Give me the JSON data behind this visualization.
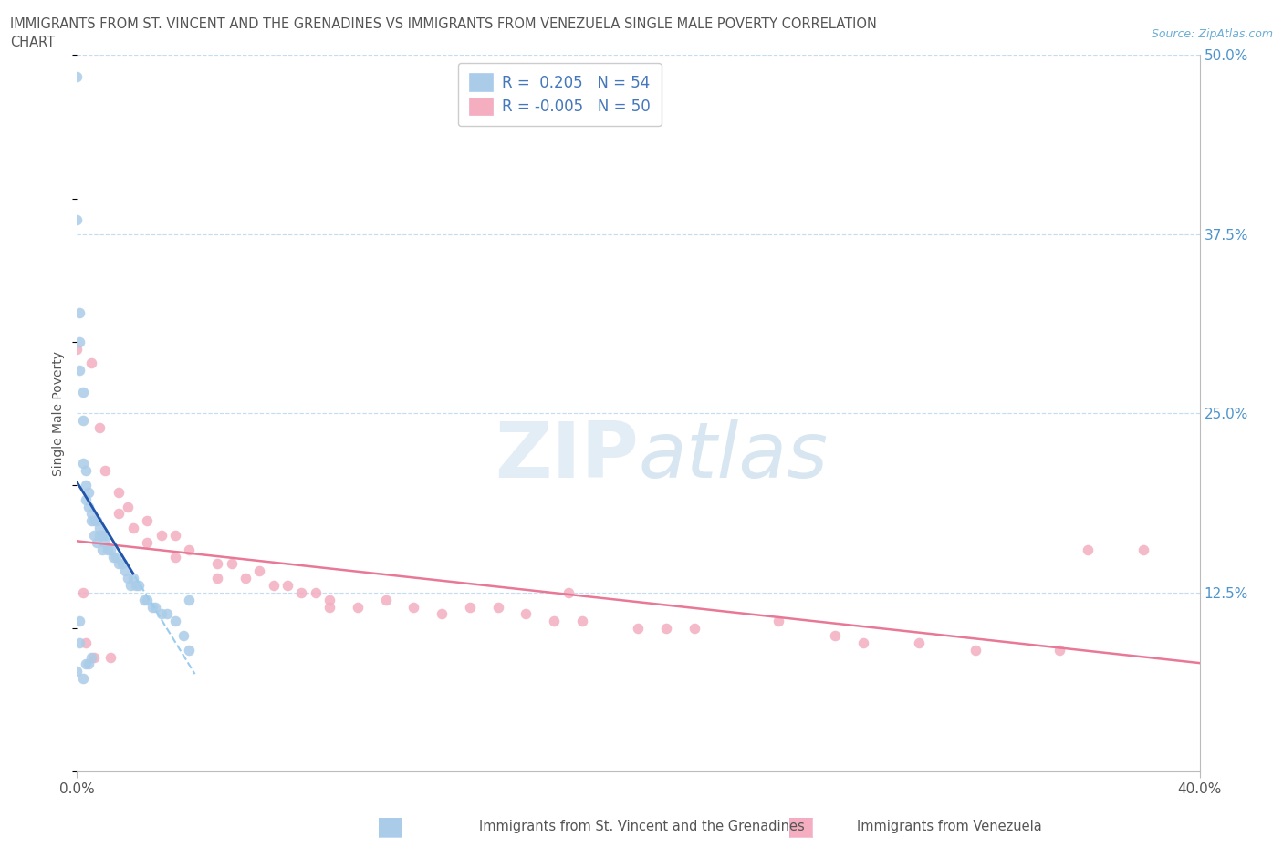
{
  "title_line1": "IMMIGRANTS FROM ST. VINCENT AND THE GRENADINES VS IMMIGRANTS FROM VENEZUELA SINGLE MALE POVERTY CORRELATION",
  "title_line2": "CHART",
  "source": "Source: ZipAtlas.com",
  "series1_label": "Immigrants from St. Vincent and the Grenadines",
  "series2_label": "Immigrants from Venezuela",
  "r1": 0.205,
  "n1": 54,
  "r2": -0.005,
  "n2": 50,
  "color1": "#aacce8",
  "color2": "#f4aec0",
  "line1_solid_color": "#2255aa",
  "line1_dash_color": "#99ccee",
  "line2_color": "#e87896",
  "xlim": [
    0.0,
    0.4
  ],
  "ylim": [
    0.0,
    0.5
  ],
  "ytick_values": [
    0.0,
    0.125,
    0.25,
    0.375,
    0.5
  ],
  "ytick_labels": [
    "0.0%",
    "12.5%",
    "25.0%",
    "37.5%",
    "50.0%"
  ],
  "ylabel_label": "Single Male Poverty",
  "blue_scatter_x": [
    0.0,
    0.0,
    0.0,
    0.001,
    0.001,
    0.001,
    0.001,
    0.001,
    0.002,
    0.002,
    0.002,
    0.002,
    0.003,
    0.003,
    0.003,
    0.003,
    0.004,
    0.004,
    0.004,
    0.005,
    0.005,
    0.005,
    0.006,
    0.006,
    0.007,
    0.007,
    0.008,
    0.008,
    0.009,
    0.009,
    0.01,
    0.01,
    0.011,
    0.012,
    0.013,
    0.014,
    0.015,
    0.016,
    0.017,
    0.018,
    0.019,
    0.02,
    0.021,
    0.022,
    0.024,
    0.025,
    0.027,
    0.028,
    0.03,
    0.032,
    0.035,
    0.038,
    0.04,
    0.04
  ],
  "blue_scatter_y": [
    0.485,
    0.385,
    0.07,
    0.32,
    0.3,
    0.28,
    0.105,
    0.09,
    0.265,
    0.245,
    0.215,
    0.065,
    0.21,
    0.2,
    0.19,
    0.075,
    0.195,
    0.185,
    0.075,
    0.18,
    0.175,
    0.08,
    0.175,
    0.165,
    0.175,
    0.16,
    0.17,
    0.165,
    0.165,
    0.155,
    0.165,
    0.16,
    0.155,
    0.155,
    0.15,
    0.15,
    0.145,
    0.145,
    0.14,
    0.135,
    0.13,
    0.135,
    0.13,
    0.13,
    0.12,
    0.12,
    0.115,
    0.115,
    0.11,
    0.11,
    0.105,
    0.095,
    0.12,
    0.085
  ],
  "pink_scatter_x": [
    0.0,
    0.005,
    0.008,
    0.01,
    0.015,
    0.015,
    0.018,
    0.02,
    0.025,
    0.025,
    0.03,
    0.035,
    0.035,
    0.04,
    0.05,
    0.05,
    0.055,
    0.06,
    0.065,
    0.07,
    0.075,
    0.08,
    0.085,
    0.09,
    0.09,
    0.1,
    0.11,
    0.12,
    0.13,
    0.14,
    0.15,
    0.16,
    0.17,
    0.175,
    0.18,
    0.2,
    0.21,
    0.22,
    0.25,
    0.27,
    0.28,
    0.3,
    0.32,
    0.35,
    0.36,
    0.38,
    0.002,
    0.003,
    0.006,
    0.012
  ],
  "pink_scatter_y": [
    0.295,
    0.285,
    0.24,
    0.21,
    0.195,
    0.18,
    0.185,
    0.17,
    0.175,
    0.16,
    0.165,
    0.165,
    0.15,
    0.155,
    0.145,
    0.135,
    0.145,
    0.135,
    0.14,
    0.13,
    0.13,
    0.125,
    0.125,
    0.12,
    0.115,
    0.115,
    0.12,
    0.115,
    0.11,
    0.115,
    0.115,
    0.11,
    0.105,
    0.125,
    0.105,
    0.1,
    0.1,
    0.1,
    0.105,
    0.095,
    0.09,
    0.09,
    0.085,
    0.085,
    0.155,
    0.155,
    0.125,
    0.09,
    0.08,
    0.08
  ]
}
